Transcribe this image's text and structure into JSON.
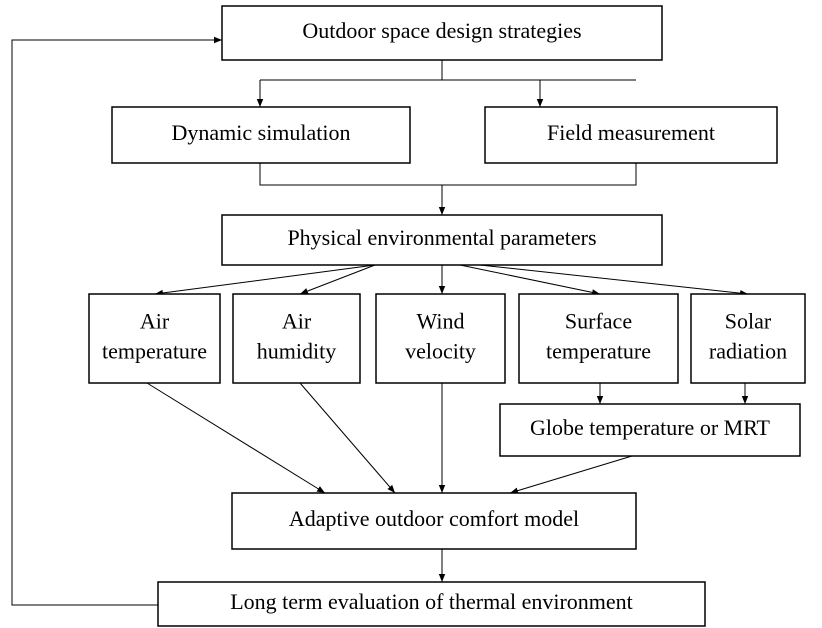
{
  "nodes": [
    {
      "lines": [
        "Outdoor space design strategies"
      ]
    },
    {
      "lines": [
        "Dynamic simulation"
      ]
    },
    {
      "lines": [
        "Field measurement"
      ]
    },
    {
      "lines": [
        "Physical environmental parameters"
      ]
    },
    {
      "lines": [
        "Air",
        "temperature"
      ]
    },
    {
      "lines": [
        "Air",
        "humidity"
      ]
    },
    {
      "lines": [
        "Wind",
        "velocity"
      ]
    },
    {
      "lines": [
        "Surface",
        "temperature"
      ]
    },
    {
      "lines": [
        "Solar",
        "radiation"
      ]
    },
    {
      "lines": [
        "Globe temperature or MRT"
      ]
    },
    {
      "lines": [
        "Adaptive outdoor comfort model"
      ]
    },
    {
      "lines": [
        "Long term evaluation of thermal environment"
      ]
    }
  ]
}
